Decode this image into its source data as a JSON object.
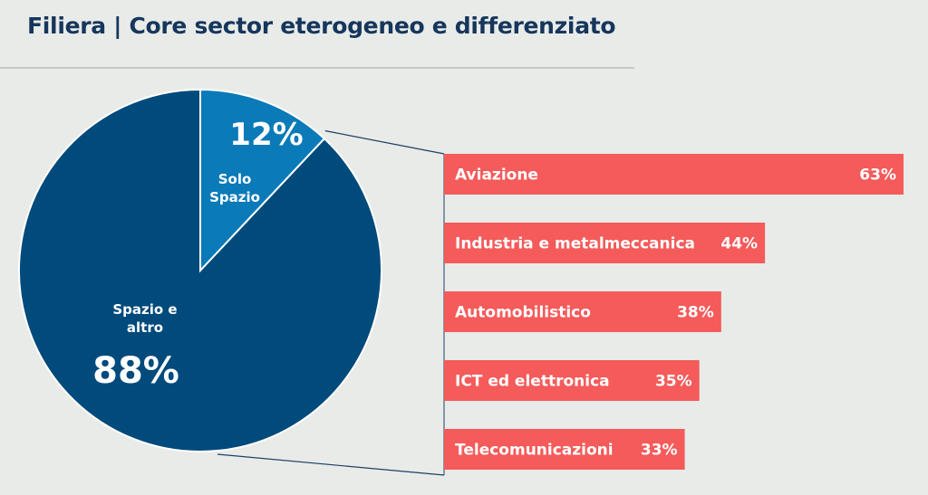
{
  "header": {
    "title": "Filiera | Core sector eterogeneo e differenziato"
  },
  "colors": {
    "background": "#e8ebe8",
    "title": "#16365c",
    "pie_major": "#004a7c",
    "pie_minor": "#0a7ab8",
    "bar": "#f45b5a",
    "connector": "#1f3f66"
  },
  "chart_data": [
    {
      "type": "pie",
      "slices": [
        {
          "label": "Solo Spazio",
          "value": 12,
          "value_label": "12%"
        },
        {
          "label": "Spazio e altro",
          "value": 88,
          "value_label": "88%"
        }
      ]
    },
    {
      "type": "bar",
      "orientation": "horizontal",
      "categories": [
        "Aviazione",
        "Industria e metalmeccanica",
        "Automobilistico",
        "ICT ed elettronica",
        "Telecomunicazioni"
      ],
      "values": [
        63,
        44,
        38,
        35,
        33
      ],
      "value_labels": [
        "63%",
        "44%",
        "38%",
        "35%",
        "33%"
      ]
    }
  ]
}
